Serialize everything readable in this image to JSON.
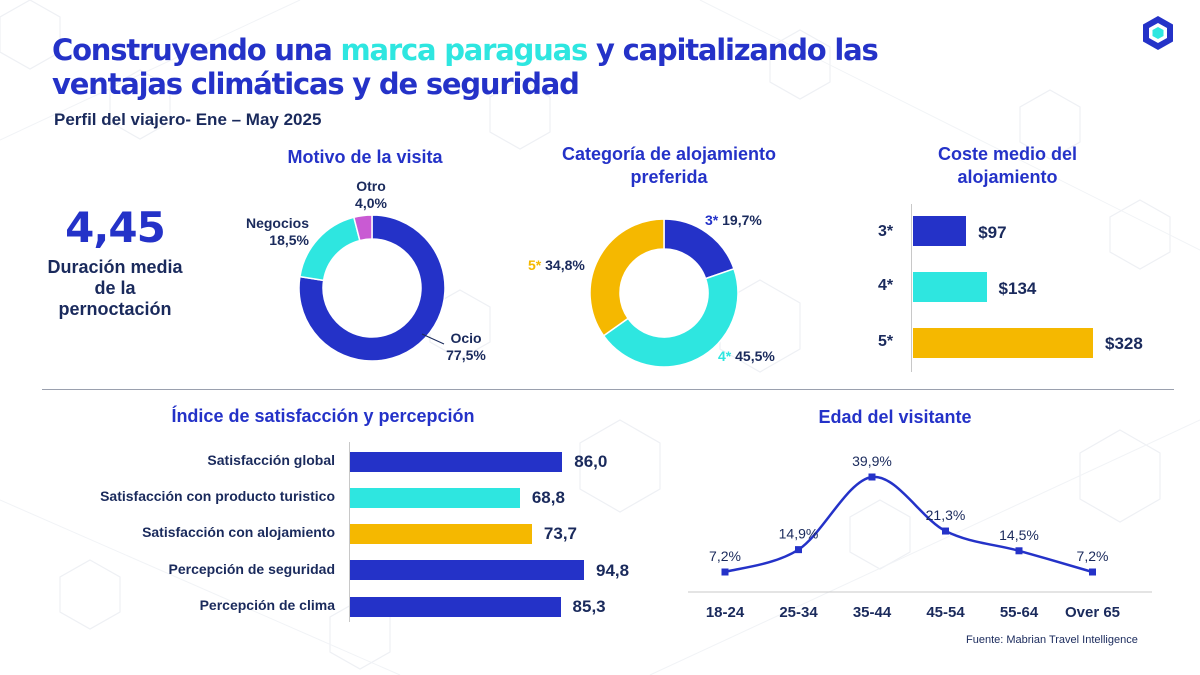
{
  "title": {
    "part1": "Construyendo una ",
    "highlight": "marca paraguas",
    "part2": " y capitalizando las",
    "line2": "ventajas climáticas y de seguridad"
  },
  "subtitle": "Perfil del viajero- Ene – May 2025",
  "stay": {
    "value": "4,45",
    "label": "Duración media de la pernoctación"
  },
  "colors": {
    "blue": "#2432c8",
    "cyan": "#2ee6e0",
    "yellow": "#f5b800",
    "magenta": "#c95ad3",
    "navy": "#1a2a5c"
  },
  "chart_data": [
    {
      "type": "pie",
      "title": "Motivo de la visita",
      "slices": [
        {
          "label": "Ocio",
          "value": 77.5,
          "display": "77,5%",
          "color": "#2432c8"
        },
        {
          "label": "Negocios",
          "value": 18.5,
          "display": "18,5%",
          "color": "#2ee6e0"
        },
        {
          "label": "Otro",
          "value": 4.0,
          "display": "4,0%",
          "color": "#c95ad3"
        }
      ]
    },
    {
      "type": "pie",
      "title": "Categoría de alojamiento preferida",
      "slices": [
        {
          "label": "3*",
          "value": 19.7,
          "display": "19,7%",
          "color": "#2432c8"
        },
        {
          "label": "4*",
          "value": 45.5,
          "display": "45,5%",
          "color": "#2ee6e0"
        },
        {
          "label": "5*",
          "value": 34.8,
          "display": "34,8%",
          "color": "#f5b800"
        }
      ]
    },
    {
      "type": "bar",
      "orientation": "horizontal",
      "title": "Coste medio del alojamiento",
      "categories": [
        "3*",
        "4*",
        "5*"
      ],
      "values": [
        97,
        134,
        328
      ],
      "labels": [
        "$97",
        "$134",
        "$328"
      ],
      "colors": [
        "#2432c8",
        "#2ee6e0",
        "#f5b800"
      ]
    },
    {
      "type": "bar",
      "orientation": "horizontal",
      "title": "Índice de satisfacción y percepción",
      "categories": [
        "Satisfacción global",
        "Satisfacción con producto turistico",
        "Satisfacción con alojamiento",
        "Percepción de seguridad",
        "Percepción de clima"
      ],
      "values": [
        86.0,
        68.8,
        73.7,
        94.8,
        85.3
      ],
      "labels": [
        "86,0",
        "68,8",
        "73,7",
        "94,8",
        "85,3"
      ],
      "colors": [
        "#2432c8",
        "#2ee6e0",
        "#f5b800",
        "#2432c8",
        "#2432c8"
      ]
    },
    {
      "type": "line",
      "title": "Edad del visitante",
      "categories": [
        "18-24",
        "25-34",
        "35-44",
        "45-54",
        "55-64",
        "Over 65"
      ],
      "values": [
        7.2,
        14.9,
        39.9,
        21.3,
        14.5,
        7.2
      ],
      "labels": [
        "7,2%",
        "14,9%",
        "39,9%",
        "21,3%",
        "14,5%",
        "7,2%"
      ],
      "color": "#2432c8"
    }
  ],
  "source": "Fuente: Mabrian Travel Intelligence"
}
